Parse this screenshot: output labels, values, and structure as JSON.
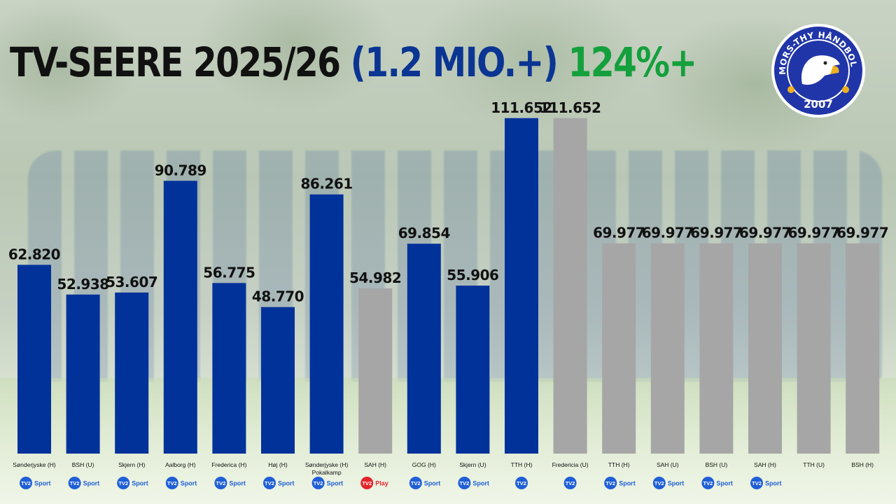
{
  "title": {
    "main": "TV-SEERE 2025/26",
    "mio": "(1.2 MIO.+)",
    "pct": "124%+"
  },
  "logo": {
    "text_top": "MORS-THY HÅNDBOLD",
    "year": "2007"
  },
  "colors": {
    "played": "#00329a",
    "upcoming": "#a6a6a6",
    "title_dark": "#111111",
    "title_blue": "#0b3592",
    "title_green": "#14a03c",
    "tv2_sport": "#1f5fd6",
    "tv2_play": "#e3242b"
  },
  "chart_data": {
    "type": "bar",
    "title": "TV-SEERE 2025/26",
    "ylim": [
      0,
      130000
    ],
    "grid": false,
    "legend": "none",
    "bars": [
      {
        "category": "Sønderjyske (H)",
        "category2": "",
        "value": 62820,
        "label": "62.820",
        "status": "played",
        "broadcaster": "tv2-sport",
        "broadcaster_text": "Sport"
      },
      {
        "category": "BSH (U)",
        "category2": "",
        "value": 52938,
        "label": "52.938",
        "status": "played",
        "broadcaster": "tv2-sport",
        "broadcaster_text": "Sport"
      },
      {
        "category": "Skjern (H)",
        "category2": "",
        "value": 53607,
        "label": "53.607",
        "status": "played",
        "broadcaster": "tv2-sport",
        "broadcaster_text": "Sport"
      },
      {
        "category": "Aalborg (H)",
        "category2": "",
        "value": 90789,
        "label": "90.789",
        "status": "played",
        "broadcaster": "tv2-sport",
        "broadcaster_text": "Sport"
      },
      {
        "category": "Frederica (H)",
        "category2": "",
        "value": 56775,
        "label": "56.775",
        "status": "played",
        "broadcaster": "tv2-sport",
        "broadcaster_text": "Sport"
      },
      {
        "category": "Høj (H)",
        "category2": "",
        "value": 48770,
        "label": "48.770",
        "status": "played",
        "broadcaster": "tv2-sport",
        "broadcaster_text": "Sport"
      },
      {
        "category": "Sønderjyske (H)",
        "category2": "Pokalkamp",
        "value": 86261,
        "label": "86.261",
        "status": "played",
        "broadcaster": "tv2-sport",
        "broadcaster_text": "Sport"
      },
      {
        "category": "SAH (H)",
        "category2": "",
        "value": 54982,
        "label": "54.982",
        "status": "upcoming",
        "broadcaster": "tv2-play",
        "broadcaster_text": "Play"
      },
      {
        "category": "GOG (H)",
        "category2": "",
        "value": 69854,
        "label": "69.854",
        "status": "played",
        "broadcaster": "tv2-sport",
        "broadcaster_text": "Sport"
      },
      {
        "category": "Skjern (U)",
        "category2": "",
        "value": 55906,
        "label": "55.906",
        "status": "played",
        "broadcaster": "tv2-sport",
        "broadcaster_text": "Sport"
      },
      {
        "category": "TTH (H)",
        "category2": "",
        "value": 111652,
        "label": "111.652",
        "status": "played",
        "broadcaster": "tv2",
        "broadcaster_text": ""
      },
      {
        "category": "Fredericia (U)",
        "category2": "",
        "value": 111652,
        "label": "111.652",
        "status": "upcoming",
        "broadcaster": "tv2",
        "broadcaster_text": ""
      },
      {
        "category": "TTH (H)",
        "category2": "",
        "value": 69977,
        "label": "69.977",
        "status": "upcoming",
        "broadcaster": "tv2-sport",
        "broadcaster_text": "Sport"
      },
      {
        "category": "SAH (U)",
        "category2": "",
        "value": 69977,
        "label": "69.977",
        "status": "upcoming",
        "broadcaster": "tv2-sport",
        "broadcaster_text": "Sport"
      },
      {
        "category": "BSH (U)",
        "category2": "",
        "value": 69977,
        "label": "69.977",
        "status": "upcoming",
        "broadcaster": "tv2-sport",
        "broadcaster_text": "Sport"
      },
      {
        "category": "SAH (H)",
        "category2": "",
        "value": 69977,
        "label": "69.977",
        "status": "upcoming",
        "broadcaster": "tv2-sport",
        "broadcaster_text": "Sport"
      },
      {
        "category": "TTH (U)",
        "category2": "",
        "value": 69977,
        "label": "69.977",
        "status": "upcoming",
        "broadcaster": "none",
        "broadcaster_text": ""
      },
      {
        "category": "BSH (H)",
        "category2": "",
        "value": 69977,
        "label": "69.977",
        "status": "upcoming",
        "broadcaster": "none",
        "broadcaster_text": ""
      }
    ]
  }
}
